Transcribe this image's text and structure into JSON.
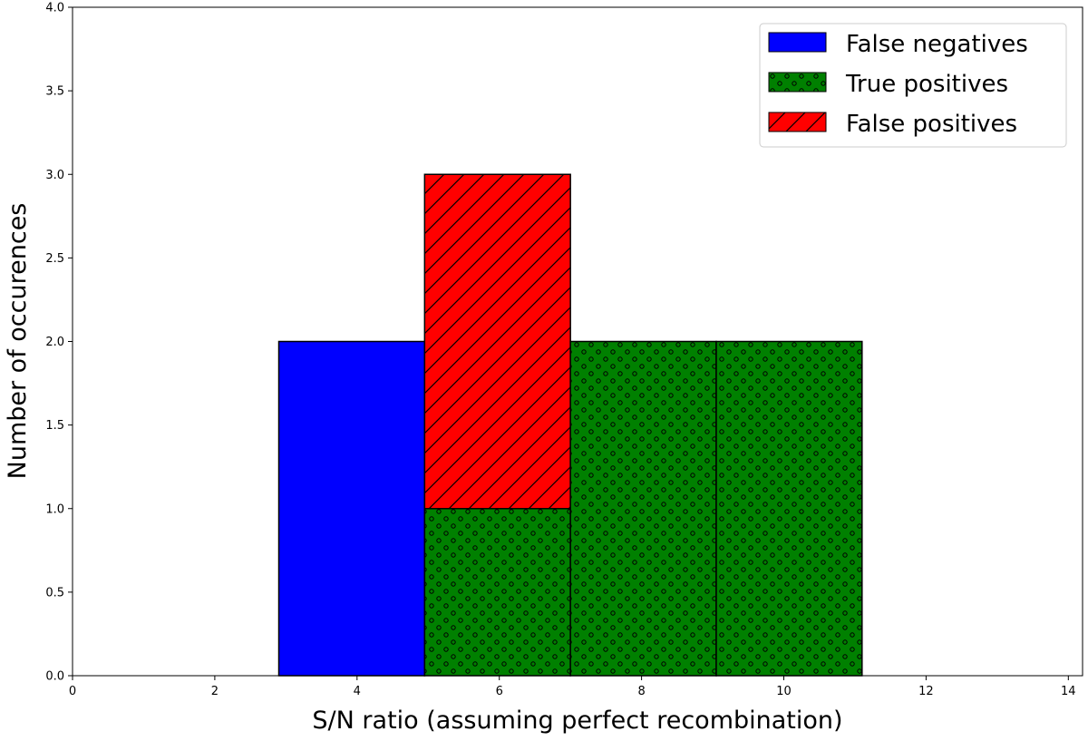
{
  "chart_data": {
    "type": "bar",
    "stacked": true,
    "title": "",
    "xlabel": "S/N ratio (assuming perfect recombination)",
    "ylabel": "Number of occurences",
    "xlim": [
      0,
      14.2
    ],
    "ylim": [
      0,
      4.0
    ],
    "xticks": [
      "0",
      "2",
      "4",
      "6",
      "8",
      "10",
      "12",
      "14"
    ],
    "yticks": [
      "0.0",
      "0.5",
      "1.0",
      "1.5",
      "2.0",
      "2.5",
      "3.0",
      "3.5",
      "4.0"
    ],
    "bin_edges": [
      2.9,
      4.95,
      7.0,
      9.05,
      11.1
    ],
    "series": [
      {
        "name": "False negatives",
        "color": "#0000ff",
        "hatch": "none",
        "values": [
          2,
          0,
          0,
          0
        ]
      },
      {
        "name": "True positives",
        "color": "#008000",
        "hatch": "dots",
        "values": [
          0,
          1,
          2,
          2
        ]
      },
      {
        "name": "False positives",
        "color": "#ff0000",
        "hatch": "diagonal",
        "values": [
          0,
          2,
          0,
          0
        ]
      }
    ],
    "legend_position": "top-right",
    "grid": false
  }
}
